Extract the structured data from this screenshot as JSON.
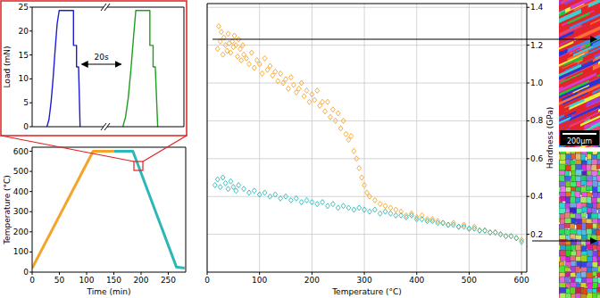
{
  "chart_data": [
    {
      "type": "line",
      "ylabel": "Load (mN)",
      "xlim": [
        0,
        14
      ],
      "ylim": [
        0,
        25
      ],
      "yticks": [
        0,
        5,
        10,
        15,
        20,
        25
      ],
      "tick_labels": "y",
      "annotation": "20s",
      "series": [
        {
          "color": "#1c1cd6",
          "x": [
            2.9,
            3.3,
            3.7,
            4.1,
            4.5,
            4.9,
            5.3,
            8.1,
            8.1,
            8.7,
            8.7,
            9.1,
            9.4
          ],
          "values": [
            0,
            1.5,
            5,
            10,
            16,
            21.5,
            24.3,
            24.3,
            17,
            17,
            12.5,
            12.5,
            0
          ]
        }
      ]
    },
    {
      "type": "line",
      "xlim": [
        26.5,
        40.7
      ],
      "ylim": [
        0,
        25
      ],
      "tick_labels": false,
      "series": [
        {
          "color": "#1f9e1f",
          "x": [
            29.4,
            29.9,
            30.4,
            30.9,
            31.4,
            31.8,
            34.4,
            34.4,
            35.0,
            35.0,
            35.4,
            35.85
          ],
          "values": [
            0,
            2,
            6,
            12,
            19,
            24.3,
            24.3,
            17,
            17,
            12.5,
            12.5,
            0
          ]
        }
      ]
    },
    {
      "type": "line",
      "xlabel": "Time (min)",
      "ylabel": "Temperature (°C)",
      "xlim": [
        0,
        282
      ],
      "xticks": [
        0,
        50,
        100,
        150,
        200,
        250
      ],
      "ylim": [
        0,
        620
      ],
      "yticks": [
        0,
        100,
        200,
        300,
        400,
        500,
        600
      ],
      "series": [
        {
          "color": "#f5a42a",
          "x": [
            0,
            112,
            150
          ],
          "values": [
            20,
            600,
            600
          ]
        },
        {
          "color": "#2cb8b8",
          "x": [
            150,
            185,
            265,
            280
          ],
          "values": [
            600,
            600,
            25,
            20
          ]
        }
      ]
    },
    {
      "type": "scatter",
      "xlabel": "Temperature (°C)",
      "ylabel": "Hardness (GPa)",
      "xlim": [
        0,
        610
      ],
      "xticks": [
        0,
        100,
        200,
        300,
        400,
        500,
        600
      ],
      "ylim": [
        0,
        1.42
      ],
      "yticks": [
        0.2,
        0.4,
        0.6,
        0.8,
        {
          "value": 1,
          "label": "1.0"
        },
        1.2,
        1.4
      ],
      "grid": true,
      "marker": "diamond",
      "annotation": "200µm",
      "series": [
        {
          "color": "#f5a42a",
          "x": [
            20,
            22,
            25,
            27,
            30,
            32,
            35,
            38,
            40,
            42,
            45,
            48,
            50,
            52,
            55,
            58,
            60,
            63,
            65,
            68,
            70,
            75,
            80,
            85,
            90,
            95,
            100,
            105,
            110,
            115,
            120,
            125,
            130,
            135,
            140,
            145,
            150,
            155,
            160,
            165,
            170,
            175,
            180,
            185,
            190,
            195,
            200,
            205,
            210,
            215,
            220,
            225,
            230,
            235,
            240,
            245,
            250,
            255,
            260,
            265,
            270,
            275,
            280,
            285,
            290,
            295,
            300,
            305,
            310,
            320,
            330,
            340,
            350,
            360,
            370,
            380,
            390,
            400,
            410,
            420,
            430,
            440,
            450,
            460,
            470,
            480,
            490,
            500,
            510,
            520,
            530,
            540,
            550,
            560,
            570,
            580,
            590,
            600
          ],
          "values": [
            1.18,
            1.3,
            1.22,
            1.27,
            1.15,
            1.24,
            1.2,
            1.17,
            1.26,
            1.21,
            1.16,
            1.22,
            1.19,
            1.25,
            1.2,
            1.14,
            1.23,
            1.18,
            1.12,
            1.2,
            1.15,
            1.13,
            1.1,
            1.16,
            1.08,
            1.12,
            1.1,
            1.05,
            1.13,
            1.07,
            1.09,
            1.04,
            1.06,
            1.01,
            1.05,
            1.0,
            1.02,
            0.97,
            1.03,
            0.99,
            0.95,
            0.97,
            1.0,
            0.93,
            0.96,
            0.9,
            0.94,
            0.91,
            0.96,
            0.88,
            0.9,
            0.85,
            0.9,
            0.82,
            0.86,
            0.8,
            0.84,
            0.76,
            0.8,
            0.73,
            0.7,
            0.72,
            0.64,
            0.6,
            0.55,
            0.5,
            0.46,
            0.42,
            0.4,
            0.38,
            0.36,
            0.35,
            0.34,
            0.33,
            0.32,
            0.3,
            0.31,
            0.29,
            0.3,
            0.28,
            0.28,
            0.27,
            0.26,
            0.25,
            0.26,
            0.24,
            0.25,
            0.23,
            0.24,
            0.22,
            0.22,
            0.21,
            0.21,
            0.2,
            0.19,
            0.19,
            0.18,
            0.17
          ]
        },
        {
          "color": "#2cb8b8",
          "x": [
            15,
            20,
            25,
            30,
            35,
            40,
            45,
            50,
            55,
            60,
            70,
            80,
            90,
            100,
            110,
            120,
            130,
            140,
            150,
            160,
            170,
            180,
            190,
            200,
            210,
            220,
            230,
            240,
            250,
            260,
            270,
            280,
            290,
            300,
            310,
            320,
            330,
            340,
            350,
            360,
            370,
            380,
            390,
            400,
            410,
            420,
            430,
            440,
            450,
            460,
            470,
            480,
            490,
            500,
            510,
            520,
            530,
            540,
            550,
            560,
            570,
            580,
            590,
            600
          ],
          "values": [
            0.46,
            0.49,
            0.45,
            0.5,
            0.47,
            0.44,
            0.48,
            0.45,
            0.43,
            0.46,
            0.44,
            0.42,
            0.43,
            0.41,
            0.42,
            0.4,
            0.41,
            0.39,
            0.4,
            0.38,
            0.39,
            0.37,
            0.38,
            0.37,
            0.36,
            0.37,
            0.35,
            0.36,
            0.34,
            0.35,
            0.34,
            0.33,
            0.34,
            0.33,
            0.32,
            0.33,
            0.31,
            0.32,
            0.31,
            0.3,
            0.3,
            0.29,
            0.3,
            0.28,
            0.28,
            0.27,
            0.27,
            0.26,
            0.26,
            0.25,
            0.25,
            0.24,
            0.24,
            0.23,
            0.23,
            0.22,
            0.22,
            0.21,
            0.21,
            0.2,
            0.19,
            0.19,
            0.18,
            0.16
          ]
        }
      ]
    }
  ]
}
